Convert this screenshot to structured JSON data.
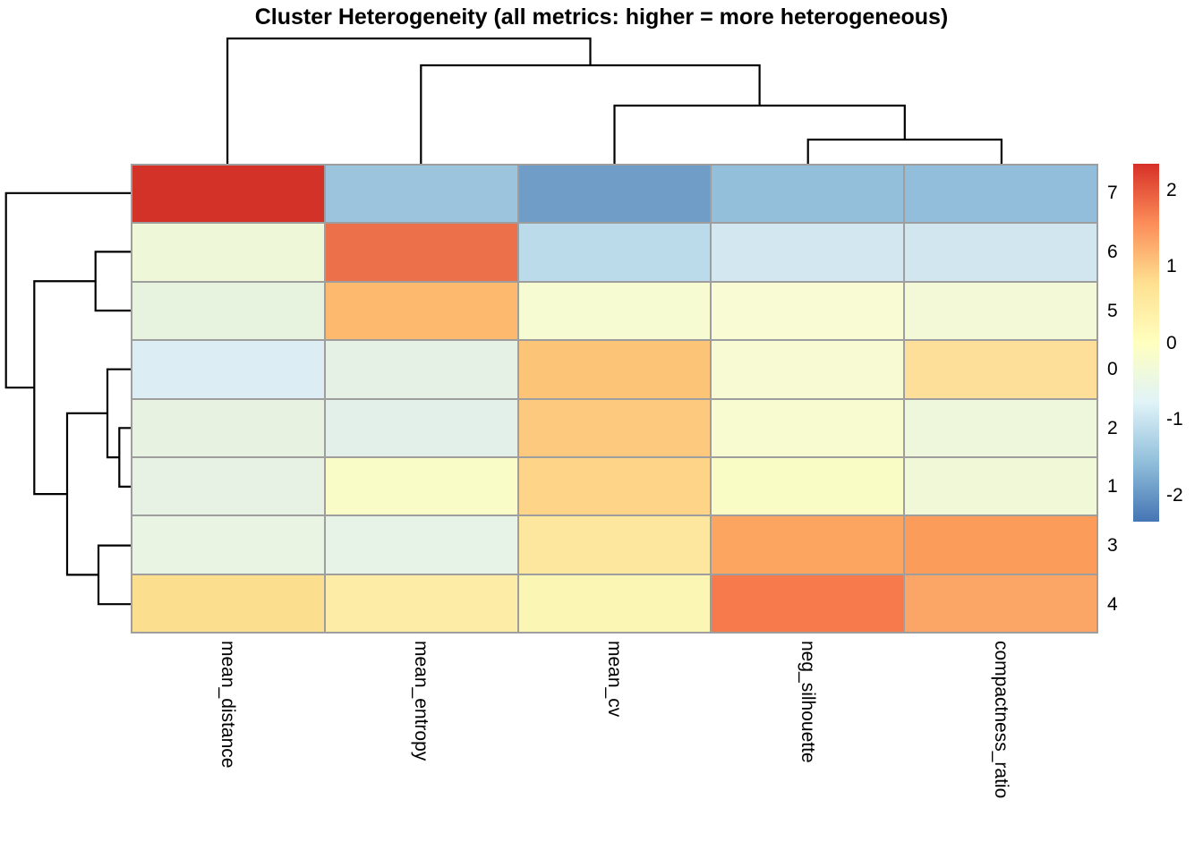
{
  "chart_data": {
    "type": "heatmap",
    "title": "Cluster Heterogeneity (all metrics: higher = more heterogeneous)",
    "columns": [
      "mean_distance",
      "mean_entropy",
      "mean_cv",
      "neg_silhouette",
      "compactness_ratio"
    ],
    "rows": [
      "7",
      "6",
      "5",
      "0",
      "2",
      "1",
      "3",
      "4"
    ],
    "values": [
      [
        2.2,
        -1.45,
        -1.9,
        -1.5,
        -1.5
      ],
      [
        -0.35,
        1.85,
        -1.1,
        -0.9,
        -0.9
      ],
      [
        -0.5,
        1.1,
        -0.2,
        -0.2,
        -0.3
      ],
      [
        -0.85,
        -0.6,
        1.0,
        -0.2,
        0.7
      ],
      [
        -0.5,
        -0.65,
        0.95,
        -0.2,
        -0.4
      ],
      [
        -0.55,
        -0.15,
        0.85,
        -0.1,
        -0.35
      ],
      [
        -0.5,
        -0.55,
        0.6,
        1.35,
        1.45
      ],
      [
        0.8,
        0.5,
        0.15,
        1.7,
        1.3
      ]
    ],
    "cell_colors": [
      [
        "#d23228",
        "#9cc5dd",
        "#6f9dc8",
        "#93bfda",
        "#92bedb"
      ],
      [
        "#eef7d8",
        "#ec7049",
        "#bcdbea",
        "#d3e7f0",
        "#d2e6ef"
      ],
      [
        "#e8f3df",
        "#fdb96d",
        "#f7fbd2",
        "#f8fbd4",
        "#f3f9d6"
      ],
      [
        "#dcedf3",
        "#e4f1e4",
        "#fcc476",
        "#f7fad3",
        "#fddf9a"
      ],
      [
        "#e7f2e1",
        "#e3f0e9",
        "#fcc97e",
        "#f8fbd0",
        "#eef6dc"
      ],
      [
        "#e7f2e5",
        "#fafcc8",
        "#fdd488",
        "#fafcc5",
        "#f1f8d8"
      ],
      [
        "#e9f4e2",
        "#e8f3e8",
        "#fde79e",
        "#fba561",
        "#fb9c5a"
      ],
      [
        "#fcdf8e",
        "#fdeca6",
        "#fbf6b4",
        "#f67a4c",
        "#fba667"
      ]
    ],
    "colorbar": {
      "tick_labels": [
        "2",
        "1",
        "0",
        "-1",
        "-2"
      ],
      "tick_values": [
        2,
        1,
        0,
        -1,
        -2
      ],
      "vmin": -2.35,
      "vmax": 2.35,
      "gradient_stops_bottom_to_top": [
        "#4575b4",
        "#91bfdb",
        "#e0f3f8",
        "#ffffbf",
        "#fee090",
        "#fc8d59",
        "#d73027"
      ]
    },
    "row_dendrogram_structure": "(7,((6,5),((0,(2,1)),(3,4))))",
    "col_dendrogram_structure": "(mean_distance,(mean_entropy,(mean_cv,(neg_silhouette,compactness_ratio))))",
    "grid_line_color": "#9e9e9e",
    "dendrogram_color": "#000000"
  }
}
